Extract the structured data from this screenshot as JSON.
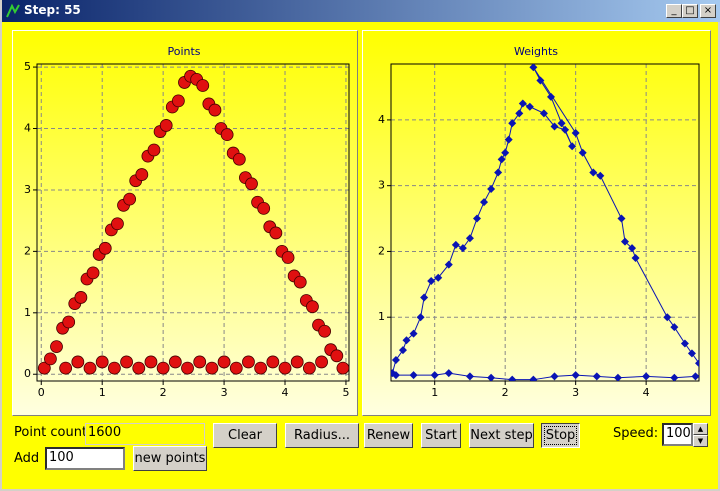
{
  "window": {
    "title": "Step: 55"
  },
  "chart_data": [
    {
      "type": "scatter",
      "title": "Points",
      "color": "#e01010",
      "grid": true,
      "xlim": [
        -0.07,
        5.05
      ],
      "ylim": [
        -0.11,
        5.05
      ],
      "xticks": [
        0,
        1,
        2,
        3,
        4,
        5
      ],
      "yticks": [
        0,
        1,
        2,
        3,
        4,
        5
      ],
      "x": [
        0.05,
        0.15,
        0.25,
        0.35,
        0.45,
        0.55,
        0.65,
        0.75,
        0.85,
        0.95,
        1.05,
        1.15,
        1.25,
        1.35,
        1.45,
        1.55,
        1.65,
        1.75,
        1.85,
        1.95,
        2.05,
        2.15,
        2.25,
        2.35,
        2.45,
        2.55,
        2.65,
        2.75,
        2.85,
        2.95,
        3.05,
        3.15,
        3.25,
        3.35,
        3.45,
        3.55,
        3.65,
        3.75,
        3.85,
        3.95,
        4.05,
        4.15,
        4.25,
        4.35,
        4.45,
        4.55,
        4.65,
        4.75,
        4.85,
        4.95,
        0.4,
        0.6,
        0.8,
        1.0,
        1.2,
        1.4,
        1.6,
        1.8,
        2.0,
        2.2,
        2.4,
        2.6,
        2.8,
        3.0,
        3.2,
        3.4,
        3.6,
        3.8,
        4.0,
        4.2,
        4.4,
        4.6
      ],
      "values": [
        0.1,
        0.25,
        0.45,
        0.75,
        0.85,
        1.15,
        1.25,
        1.55,
        1.65,
        1.95,
        2.05,
        2.35,
        2.45,
        2.75,
        2.85,
        3.15,
        3.25,
        3.55,
        3.65,
        3.95,
        4.05,
        4.35,
        4.45,
        4.75,
        4.85,
        4.8,
        4.7,
        4.4,
        4.3,
        4.0,
        3.9,
        3.6,
        3.5,
        3.2,
        3.1,
        2.8,
        2.7,
        2.4,
        2.3,
        2.0,
        1.9,
        1.6,
        1.5,
        1.2,
        1.1,
        0.8,
        0.7,
        0.4,
        0.3,
        0.1,
        0.1,
        0.2,
        0.1,
        0.2,
        0.1,
        0.2,
        0.1,
        0.2,
        0.1,
        0.2,
        0.1,
        0.2,
        0.1,
        0.2,
        0.1,
        0.2,
        0.1,
        0.2,
        0.1,
        0.2,
        0.1,
        0.2
      ]
    },
    {
      "type": "line",
      "title": "Weights",
      "color": "#0a14b4",
      "grid": true,
      "xlim": [
        0.38,
        4.75
      ],
      "ylim": [
        0.03,
        4.85
      ],
      "xticks": [
        1,
        2,
        3,
        4
      ],
      "yticks": [
        1,
        2,
        3,
        4
      ],
      "x": [
        4.7,
        4.4,
        4.0,
        3.6,
        3.3,
        3.0,
        2.7,
        2.4,
        2.1,
        1.8,
        1.5,
        1.2,
        1.0,
        0.7,
        0.45,
        0.4,
        0.45,
        0.55,
        0.6,
        0.7,
        0.8,
        0.85,
        0.95,
        1.05,
        1.2,
        1.3,
        1.4,
        1.5,
        1.6,
        1.7,
        1.8,
        1.9,
        1.95,
        2.0,
        2.05,
        2.1,
        2.2,
        2.25,
        2.35,
        2.55,
        2.7,
        2.85,
        2.95,
        2.8,
        2.65,
        2.5,
        2.4,
        3.0,
        3.1,
        3.25,
        3.35,
        3.65,
        3.7,
        3.8,
        3.85,
        4.3,
        4.4,
        4.55,
        4.65,
        4.75
      ],
      "values": [
        0.1,
        0.08,
        0.1,
        0.08,
        0.1,
        0.12,
        0.1,
        0.05,
        0.05,
        0.08,
        0.1,
        0.15,
        0.12,
        0.12,
        0.12,
        0.15,
        0.35,
        0.5,
        0.65,
        0.75,
        1.0,
        1.3,
        1.55,
        1.6,
        1.8,
        2.1,
        2.05,
        2.2,
        2.5,
        2.75,
        2.95,
        3.2,
        3.4,
        3.5,
        3.7,
        3.95,
        4.1,
        4.25,
        4.2,
        4.1,
        3.9,
        3.85,
        3.6,
        3.95,
        4.35,
        4.6,
        4.8,
        3.8,
        3.5,
        3.2,
        3.15,
        2.5,
        2.15,
        2.05,
        1.9,
        1.0,
        0.85,
        0.6,
        0.45,
        0.3
      ]
    }
  ],
  "controls": {
    "point_count_label": "Point count:",
    "point_count": "1600",
    "buttons": [
      "Clear",
      "Radius...",
      "Renew",
      "Start",
      "Next step",
      "Stop"
    ],
    "speed_label": "Speed:",
    "speed": "100",
    "add_label": "Add",
    "add_count": "100",
    "add_button": "new points"
  }
}
